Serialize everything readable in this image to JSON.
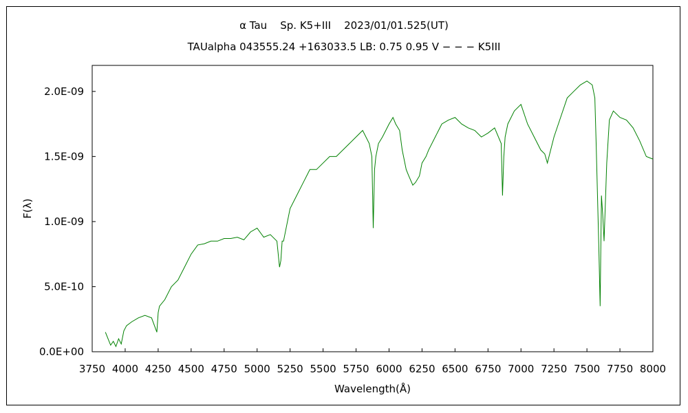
{
  "chart_data": {
    "type": "line",
    "title": "α Tau    Sp. K5+III    2023/01/01.525(UT)",
    "subtitle": "TAUalpha 043555.24 +163033.5 LB: 0.75 0.95 V − − − K5III",
    "xlabel": "Wavelength(Å)",
    "ylabel": "F(λ)",
    "xlim": [
      3750,
      8000
    ],
    "ylim": [
      0,
      2.2e-09
    ],
    "x_ticks": [
      "3750",
      "4000",
      "4250",
      "4500",
      "4750",
      "5000",
      "5250",
      "5500",
      "5750",
      "6000",
      "6250",
      "6500",
      "6750",
      "7000",
      "7250",
      "7500",
      "7750",
      "8000"
    ],
    "x_tick_values": [
      3750,
      4000,
      4250,
      4500,
      4750,
      5000,
      5250,
      5500,
      5750,
      6000,
      6250,
      6500,
      6750,
      7000,
      7250,
      7500,
      7750,
      8000
    ],
    "y_ticks": [
      "0.0E+00",
      "5.0E-10",
      "1.0E-09",
      "1.5E-09",
      "2.0E-09"
    ],
    "y_tick_values": [
      0,
      5e-10,
      1e-09,
      1.5e-09,
      2e-09
    ],
    "grid": false,
    "line_color": "#008000",
    "series": [
      {
        "x": [
          3850,
          3870,
          3890,
          3910,
          3930,
          3950,
          3970,
          3990,
          4010,
          4050,
          4100,
          4150,
          4200,
          4240,
          4250,
          4260,
          4300,
          4350,
          4400,
          4450,
          4500,
          4550,
          4600,
          4650,
          4700,
          4750,
          4800,
          4850,
          4900,
          4950,
          5000,
          5050,
          5100,
          5150,
          5170,
          5180,
          5190,
          5200,
          5250,
          5300,
          5350,
          5400,
          5450,
          5500,
          5550,
          5600,
          5650,
          5700,
          5750,
          5800,
          5850,
          5870,
          5880,
          5890,
          5900,
          5920,
          5950,
          6000,
          6030,
          6050,
          6080,
          6100,
          6130,
          6150,
          6180,
          6200,
          6230,
          6250,
          6280,
          6300,
          6350,
          6400,
          6450,
          6500,
          6550,
          6600,
          6650,
          6700,
          6750,
          6800,
          6850,
          6860,
          6870,
          6880,
          6900,
          6950,
          7000,
          7050,
          7100,
          7150,
          7180,
          7200,
          7250,
          7300,
          7350,
          7400,
          7450,
          7500,
          7540,
          7560,
          7570,
          7590,
          7600,
          7610,
          7620,
          7630,
          7650,
          7670,
          7700,
          7750,
          7800,
          7850,
          7900,
          7950,
          8000
        ],
        "y": [
          1.5e-10,
          1e-10,
          5e-11,
          8e-11,
          4e-11,
          1e-10,
          6e-11,
          1.6e-10,
          2e-10,
          2.3e-10,
          2.6e-10,
          2.8e-10,
          2.6e-10,
          1.5e-10,
          3e-10,
          3.5e-10,
          4e-10,
          5e-10,
          5.5e-10,
          6.5e-10,
          7.5e-10,
          8.2e-10,
          8.3e-10,
          8.5e-10,
          8.5e-10,
          8.7e-10,
          8.7e-10,
          8.8e-10,
          8.6e-10,
          9.2e-10,
          9.5e-10,
          8.8e-10,
          9e-10,
          8.5e-10,
          6.5e-10,
          7e-10,
          8.5e-10,
          8.5e-10,
          1.1e-09,
          1.2e-09,
          1.3e-09,
          1.4e-09,
          1.4e-09,
          1.45e-09,
          1.5e-09,
          1.5e-09,
          1.55e-09,
          1.6e-09,
          1.65e-09,
          1.7e-09,
          1.6e-09,
          1.5e-09,
          9.5e-10,
          1.4e-09,
          1.5e-09,
          1.6e-09,
          1.65e-09,
          1.75e-09,
          1.8e-09,
          1.75e-09,
          1.7e-09,
          1.55e-09,
          1.4e-09,
          1.35e-09,
          1.28e-09,
          1.3e-09,
          1.35e-09,
          1.45e-09,
          1.5e-09,
          1.55e-09,
          1.65e-09,
          1.75e-09,
          1.78e-09,
          1.8e-09,
          1.75e-09,
          1.72e-09,
          1.7e-09,
          1.65e-09,
          1.68e-09,
          1.72e-09,
          1.6e-09,
          1.2e-09,
          1.5e-09,
          1.65e-09,
          1.75e-09,
          1.85e-09,
          1.9e-09,
          1.75e-09,
          1.65e-09,
          1.55e-09,
          1.52e-09,
          1.45e-09,
          1.65e-09,
          1.8e-09,
          1.95e-09,
          2e-09,
          2.05e-09,
          2.08e-09,
          2.05e-09,
          1.95e-09,
          1.6e-09,
          8e-10,
          3.5e-10,
          1.2e-09,
          1.05e-09,
          8.5e-10,
          1.45e-09,
          1.78e-09,
          1.85e-09,
          1.8e-09,
          1.78e-09,
          1.72e-09,
          1.62e-09,
          1.5e-09,
          1.48e-09
        ]
      }
    ]
  }
}
